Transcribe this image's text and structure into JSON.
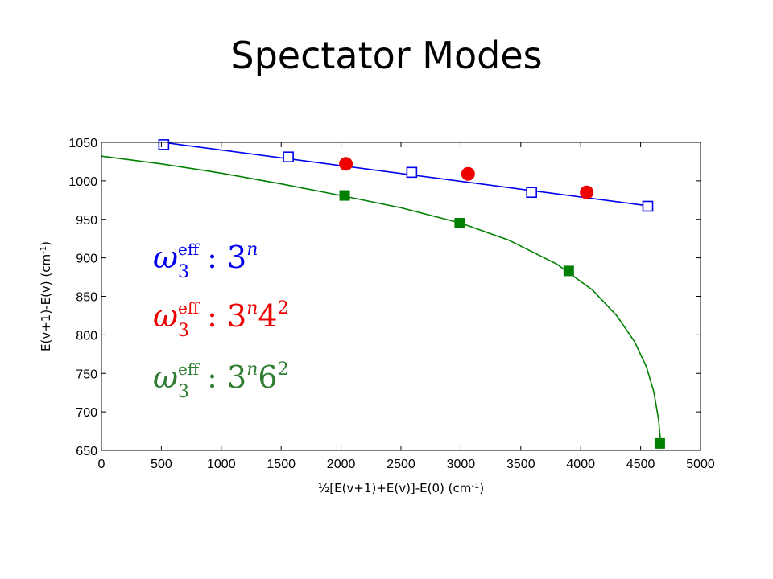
{
  "slide": {
    "title": "Spectator Modes"
  },
  "chart_data": {
    "type": "scatter",
    "title": "",
    "xlabel": "½[E(v+1)+E(v)]-E(0)  (cm-1)",
    "xlabel_main": "½[E(v+1)+E(v)]-E(0)  (cm",
    "xlabel_sup": "-1",
    "xlabel_close": ")",
    "ylabel": "E(v+1)-E(v)  (cm-1)",
    "ylabel_main": "E(v+1)-E(v)  (cm",
    "ylabel_sup": "-1",
    "ylabel_close": ")",
    "xlim": [
      0,
      5000
    ],
    "ylim": [
      650,
      1050
    ],
    "xticks": [
      0,
      500,
      1000,
      1500,
      2000,
      2500,
      3000,
      3500,
      4000,
      4500,
      5000
    ],
    "yticks": [
      650,
      700,
      750,
      800,
      850,
      900,
      950,
      1000,
      1050
    ],
    "grid": false,
    "legend_position": "left",
    "series": [
      {
        "name": "ω3eff : 3n",
        "color": "#0000ee",
        "marker": "open-square",
        "points": [
          [
            520,
            1047
          ],
          [
            1560,
            1031
          ],
          [
            2590,
            1011
          ],
          [
            3590,
            985
          ],
          [
            4560,
            967
          ]
        ],
        "fit": "linear"
      },
      {
        "name": "ω3eff : 3n42",
        "color": "#ee0000",
        "marker": "filled-circle",
        "points": [
          [
            2040,
            1022
          ],
          [
            3060,
            1009
          ],
          [
            4050,
            985
          ]
        ]
      },
      {
        "name": "ω3eff : 3n62",
        "color": "#008000",
        "marker": "filled-square",
        "points": [
          [
            2030,
            981
          ],
          [
            2990,
            945
          ],
          [
            3900,
            883
          ],
          [
            4660,
            659
          ]
        ],
        "fit_curve": [
          [
            0,
            1032
          ],
          [
            500,
            1022
          ],
          [
            1000,
            1010
          ],
          [
            1500,
            996
          ],
          [
            2000,
            981
          ],
          [
            2500,
            965
          ],
          [
            3000,
            945
          ],
          [
            3400,
            923
          ],
          [
            3800,
            892
          ],
          [
            4100,
            858
          ],
          [
            4300,
            825
          ],
          [
            4450,
            791
          ],
          [
            4550,
            758
          ],
          [
            4610,
            726
          ],
          [
            4650,
            690
          ],
          [
            4670,
            655
          ]
        ]
      }
    ],
    "legend": [
      {
        "color": "#0000ee",
        "symbol": "ω",
        "sub": "3",
        "sup": "eff",
        "sep": " : ",
        "expr": "3",
        "exp": "n",
        "tail": "",
        "tail_exp": ""
      },
      {
        "color": "#ee0000",
        "symbol": "ω",
        "sub": "3",
        "sup": "eff",
        "sep": " : ",
        "expr": "3",
        "exp": "n",
        "tail": "4",
        "tail_exp": "2"
      },
      {
        "color": "#2e7d32",
        "symbol": "ω",
        "sub": "3",
        "sup": "eff",
        "sep": " : ",
        "expr": "3",
        "exp": "n",
        "tail": "6",
        "tail_exp": "2"
      }
    ]
  }
}
